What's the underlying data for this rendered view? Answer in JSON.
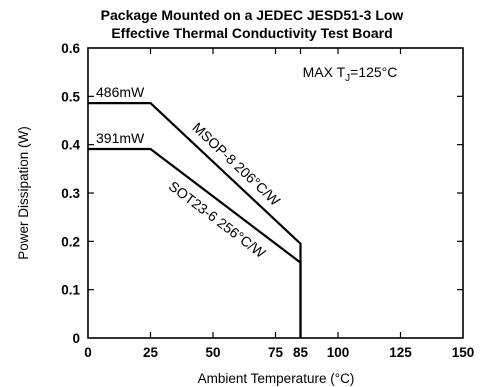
{
  "chart_data": {
    "type": "line",
    "title": "Package Mounted on a JEDEC JESD51-3 Low",
    "subtitle": "Effective Thermal Conductivity Test Board",
    "xlabel": "Ambient Temperature (°C)",
    "ylabel": "Power Dissipation (W)",
    "xlim": [
      0,
      150
    ],
    "ylim": [
      0,
      0.6
    ],
    "x_ticks": [
      {
        "value": 0,
        "label": "0"
      },
      {
        "value": 25,
        "label": "25"
      },
      {
        "value": 50,
        "label": "50"
      },
      {
        "value": 75,
        "label": "75"
      },
      {
        "value": 85,
        "label": "85"
      },
      {
        "value": 100,
        "label": "100"
      },
      {
        "value": 125,
        "label": "125"
      },
      {
        "value": 150,
        "label": "150"
      }
    ],
    "y_ticks": [
      {
        "value": 0,
        "label": "0"
      },
      {
        "value": 0.1,
        "label": "0.1"
      },
      {
        "value": 0.2,
        "label": "0.2"
      },
      {
        "value": 0.3,
        "label": "0.3"
      },
      {
        "value": 0.4,
        "label": "0.4"
      },
      {
        "value": 0.5,
        "label": "0.5"
      },
      {
        "value": 0.6,
        "label": "0.6"
      }
    ],
    "grid": false,
    "annotation": {
      "prefix": "MAX T",
      "subscript": "J",
      "suffix": "=125°C"
    },
    "series": [
      {
        "name": "MSOP-8 206°C/W",
        "value_label": "486mW",
        "points": [
          [
            0,
            0.486
          ],
          [
            25,
            0.486
          ],
          [
            85,
            0.195
          ],
          [
            85,
            0
          ]
        ]
      },
      {
        "name": "SOT23-6 256°C/W",
        "value_label": "391mW",
        "points": [
          [
            0,
            0.391
          ],
          [
            25,
            0.391
          ],
          [
            85,
            0.156
          ],
          [
            85,
            0
          ]
        ]
      }
    ]
  }
}
